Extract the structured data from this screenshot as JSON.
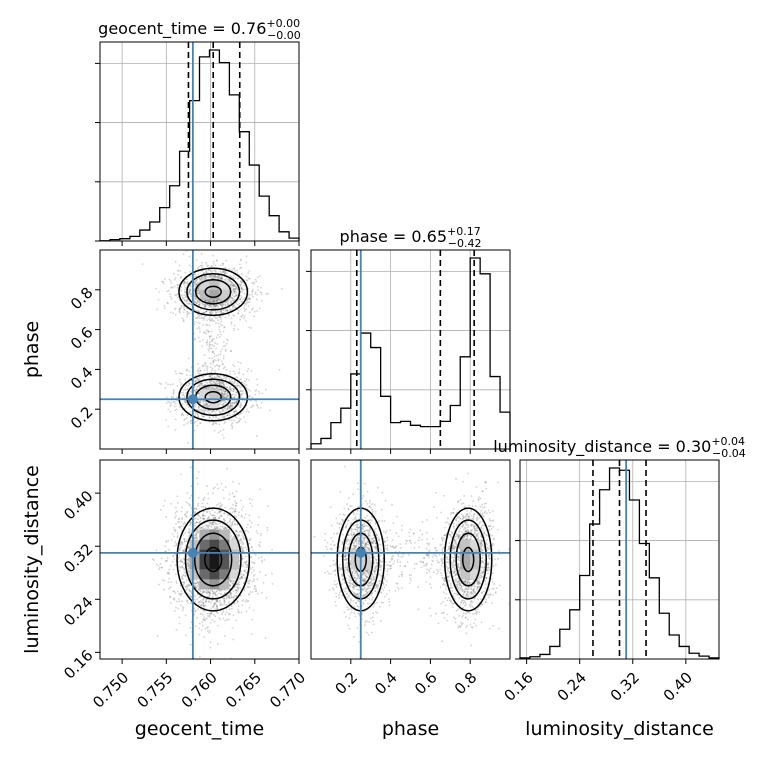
{
  "chart_data": {
    "type": "corner",
    "parameters": [
      "geocent_time",
      "phase",
      "luminosity_distance"
    ],
    "titles": [
      {
        "param": "geocent_time",
        "text": "geocent_time = 0.76",
        "plus": "+0.00",
        "minus": "−0.00"
      },
      {
        "param": "phase",
        "text": "phase = 0.65",
        "plus": "+0.17",
        "minus": "−0.42"
      },
      {
        "param": "luminosity_distance",
        "text": "luminosity_distance = 0.30",
        "plus": "+0.04",
        "minus": "−0.04"
      }
    ],
    "axis_labels": [
      "geocent_time",
      "phase",
      "luminosity_distance"
    ],
    "ranges": {
      "geocent_time": [
        0.7475,
        0.77
      ],
      "phase": [
        0.0,
        1.0
      ],
      "luminosity_distance": [
        0.15,
        0.45
      ]
    },
    "tick_labels": {
      "geocent_time": [
        "0.750",
        "0.755",
        "0.760",
        "0.765",
        "0.770"
      ],
      "phase": [
        "0.2",
        "0.4",
        "0.6",
        "0.8"
      ],
      "luminosity_distance": [
        "0.16",
        "0.24",
        "0.32",
        "0.40"
      ]
    },
    "truths": {
      "geocent_time": 0.758,
      "phase": 0.25,
      "luminosity_distance": 0.31
    },
    "quantiles": {
      "geocent_time": [
        0.7575,
        0.7603,
        0.7633
      ],
      "phase": [
        0.23,
        0.65,
        0.82
      ],
      "luminosity_distance": [
        0.26,
        0.3,
        0.34
      ]
    },
    "marginal_histograms": {
      "geocent_time": {
        "bin_edges": [
          0.7475,
          0.74863,
          0.74975,
          0.75088,
          0.752,
          0.75313,
          0.75425,
          0.75538,
          0.7565,
          0.75763,
          0.75875,
          0.75988,
          0.761,
          0.76213,
          0.76325,
          0.76438,
          0.7655,
          0.76663,
          0.76775,
          0.76888,
          0.77
        ],
        "counts": [
          0.2,
          1.2,
          2.0,
          4.0,
          9.5,
          16.5,
          29.0,
          48.0,
          78.0,
          122.0,
          160.0,
          166.0,
          155.0,
          127.0,
          95.0,
          66.0,
          39.0,
          22.0,
          8.0,
          2.5
        ]
      },
      "phase": {
        "bin_edges": [
          0.0,
          0.05,
          0.1,
          0.15,
          0.2,
          0.25,
          0.3,
          0.35,
          0.4,
          0.45,
          0.5,
          0.55,
          0.6,
          0.65,
          0.7,
          0.75,
          0.8,
          0.85,
          0.9,
          0.95,
          1.0
        ],
        "counts": [
          4.0,
          8.0,
          20.0,
          31.0,
          57.0,
          88.0,
          77.0,
          40.0,
          20.0,
          21.0,
          18.0,
          17.0,
          17.0,
          21.0,
          33.0,
          70.0,
          145.0,
          133.0,
          55.0,
          28.0
        ]
      },
      "luminosity_distance": {
        "bin_edges": [
          0.15,
          0.165,
          0.18,
          0.195,
          0.21,
          0.225,
          0.24,
          0.255,
          0.27,
          0.285,
          0.3,
          0.315,
          0.33,
          0.345,
          0.36,
          0.375,
          0.39,
          0.405,
          0.42,
          0.435,
          0.45
        ],
        "counts": [
          1.0,
          2.0,
          4.0,
          11.0,
          26.0,
          43.0,
          73.0,
          118.0,
          148.0,
          167.0,
          165.0,
          139.0,
          101.0,
          71.0,
          40.0,
          21.0,
          11.0,
          5.0,
          2.5,
          1.0
        ]
      }
    },
    "density_modes": {
      "geocent_time_vs_phase": [
        {
          "x": 0.7603,
          "y": 0.79,
          "sx": 0.0018,
          "sy": 0.055,
          "weight": 0.55
        },
        {
          "x": 0.7603,
          "y": 0.26,
          "sx": 0.0018,
          "sy": 0.055,
          "weight": 0.45
        }
      ],
      "geocent_time_vs_luminosity_distance": [
        {
          "x": 0.7603,
          "y": 0.3,
          "sx": 0.0019,
          "sy": 0.036,
          "weight": 1.0
        }
      ],
      "phase_vs_luminosity_distance": [
        {
          "x": 0.25,
          "y": 0.3,
          "sx": 0.055,
          "sy": 0.036,
          "weight": 0.45
        },
        {
          "x": 0.79,
          "y": 0.3,
          "sx": 0.055,
          "sy": 0.036,
          "weight": 0.55
        }
      ]
    },
    "colors": {
      "truth": "#4682b4",
      "histogram": "#000000",
      "grid": "#b0b0b0",
      "scatter": "#808080"
    },
    "grid": true
  }
}
